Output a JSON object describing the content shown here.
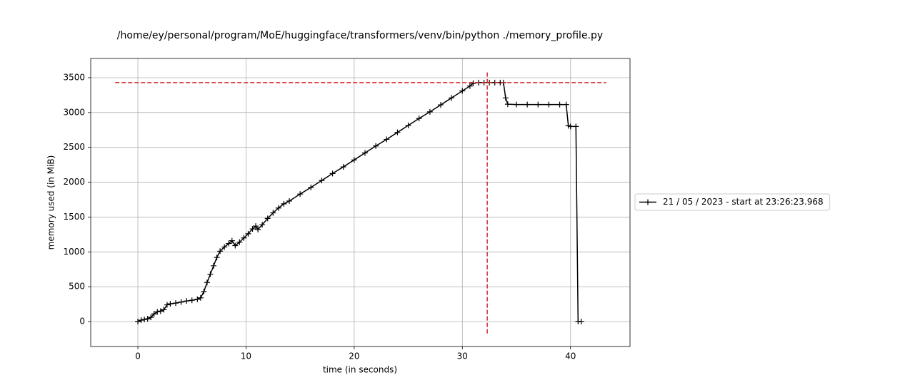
{
  "chart_data": {
    "type": "line",
    "title": "/home/ey/personal/program/MoE/huggingface/transformers/venv/bin/python ./memory_profile.py",
    "xlabel": "time (in seconds)",
    "ylabel": "memory used (in MiB)",
    "x": [
      0,
      0.3,
      0.6,
      0.9,
      1.2,
      1.5,
      1.8,
      2.1,
      2.4,
      2.7,
      3.0,
      3.5,
      4.0,
      4.5,
      5.0,
      5.5,
      5.8,
      6.1,
      6.4,
      6.7,
      7.0,
      7.3,
      7.6,
      8.0,
      8.4,
      8.7,
      9.0,
      9.4,
      9.8,
      10.2,
      10.6,
      10.9,
      11.1,
      11.5,
      12.0,
      12.5,
      13.0,
      13.5,
      14,
      15,
      16,
      17,
      18,
      19,
      20,
      21,
      22,
      23,
      24,
      25,
      26,
      27,
      28,
      29,
      30,
      30.7,
      31,
      31.5,
      32,
      32.5,
      33,
      33.5,
      33.8,
      34.0,
      34.2,
      35,
      36,
      37,
      38,
      39,
      39.6,
      39.8,
      40.0,
      40.5,
      40.7,
      41.0
    ],
    "series": [
      {
        "name": "21 / 05 / 2023 - start at 23:26:23.968",
        "color": "#000000",
        "values": [
          0,
          20,
          30,
          40,
          60,
          110,
          140,
          150,
          170,
          240,
          255,
          265,
          280,
          295,
          305,
          320,
          340,
          430,
          560,
          680,
          800,
          920,
          1010,
          1070,
          1120,
          1160,
          1090,
          1140,
          1200,
          1260,
          1330,
          1370,
          1320,
          1390,
          1480,
          1560,
          1630,
          1690,
          1730,
          1830,
          1925,
          2025,
          2125,
          2220,
          2320,
          2420,
          2520,
          2615,
          2715,
          2815,
          2915,
          3010,
          3110,
          3210,
          3310,
          3380,
          3420,
          3430,
          3430,
          3430,
          3430,
          3430,
          3430,
          3210,
          3120,
          3115,
          3115,
          3115,
          3115,
          3115,
          3115,
          2810,
          2800,
          2800,
          0,
          0
        ]
      }
    ],
    "peak_hline": {
      "y": 3430,
      "x": [
        -2.1,
        43.3
      ],
      "color": "#d62728"
    },
    "peak_vline": {
      "x": 32.3,
      "y": [
        -170,
        3600
      ],
      "color": "#d62728"
    },
    "xlim": [
      -4.36,
      45.5
    ],
    "ylim": [
      -358,
      3776
    ],
    "xticks": [
      0,
      10,
      20,
      30,
      40
    ],
    "yticks": [
      0,
      500,
      1000,
      1500,
      2000,
      2500,
      3000,
      3500
    ],
    "grid": true,
    "legend": "right"
  }
}
